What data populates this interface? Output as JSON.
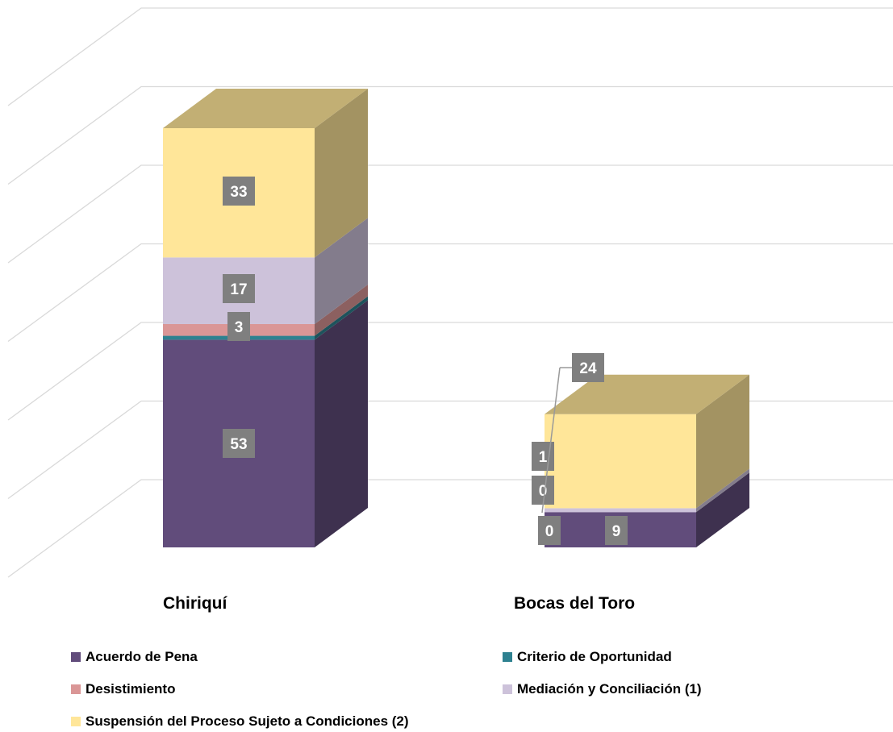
{
  "chart_data": {
    "type": "bar",
    "stacked": true,
    "three_d": true,
    "categories": [
      "Chiriquí",
      "Bocas del Toro"
    ],
    "series": [
      {
        "name": "Acuerdo de Pena",
        "color": "#614C7B",
        "values": [
          53,
          9
        ],
        "labels": [
          "53",
          "9"
        ]
      },
      {
        "name": "Criterio de Oportunidad",
        "color": "#2E8190",
        "values": [
          1,
          0
        ],
        "labels": [
          "",
          "0"
        ]
      },
      {
        "name": "Desistimiento",
        "color": "#DA9696",
        "values": [
          3,
          0
        ],
        "labels": [
          "3",
          "0"
        ]
      },
      {
        "name": "Mediación y Conciliación (1)",
        "color": "#CDC2DA",
        "values": [
          17,
          1
        ],
        "labels": [
          "17",
          "1"
        ]
      },
      {
        "name": "Suspensión del Proceso Sujeto a Condiciones (2)",
        "color": "#FFE699",
        "values": [
          33,
          24
        ],
        "labels": [
          "33",
          "24"
        ]
      }
    ],
    "grid": true,
    "legend_position": "bottom"
  }
}
